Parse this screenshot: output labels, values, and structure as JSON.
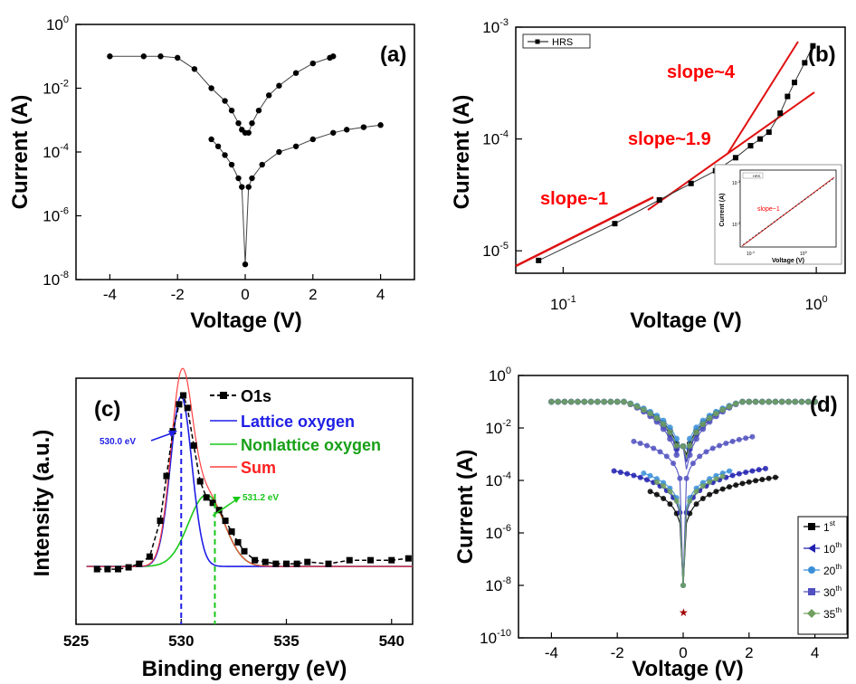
{
  "chart_data": [
    {
      "panel": "(a)",
      "type": "scatter",
      "xlabel": "Voltage (V)",
      "ylabel": "Current (A)",
      "xlim": [
        -5,
        5
      ],
      "ylim_log10": [
        -8,
        0
      ],
      "x_ticks": [
        "-4",
        "-2",
        "0",
        "2",
        "4"
      ],
      "y_ticks": [
        {
          "base": "10",
          "exp": "0"
        },
        {
          "base": "10",
          "exp": "-2"
        },
        {
          "base": "10",
          "exp": "-4"
        },
        {
          "base": "10",
          "exp": "-6"
        },
        {
          "base": "10",
          "exp": "-8"
        }
      ],
      "scale_y": "log",
      "grid": false,
      "series": [
        {
          "segment": "set-branch",
          "points": [
            [
              -4,
              0.1
            ],
            [
              -3,
              0.1
            ],
            [
              -2.5,
              0.1
            ],
            [
              -2,
              0.09
            ],
            [
              -1.5,
              0.04
            ],
            [
              -1,
              0.01
            ],
            [
              -0.6,
              0.004
            ],
            [
              -0.4,
              0.002
            ],
            [
              -0.2,
              0.0008
            ],
            [
              -0.1,
              0.0005
            ],
            [
              0,
              0.0004
            ],
            [
              0.1,
              0.0004
            ],
            [
              0.2,
              0.0008
            ],
            [
              0.4,
              0.002
            ],
            [
              0.7,
              0.006
            ],
            [
              1,
              0.012
            ],
            [
              1.5,
              0.03
            ],
            [
              2,
              0.06
            ],
            [
              2.5,
              0.09
            ],
            [
              2.6,
              0.1
            ]
          ]
        },
        {
          "segment": "reset-branch",
          "points": [
            [
              -1,
              0.00025
            ],
            [
              -0.8,
              0.00015
            ],
            [
              -0.6,
              8e-05
            ],
            [
              -0.4,
              4e-05
            ],
            [
              -0.2,
              1.5e-05
            ],
            [
              -0.1,
              8e-06
            ],
            [
              0,
              3e-08
            ],
            [
              0.1,
              8e-06
            ],
            [
              0.2,
              1.5e-05
            ],
            [
              0.5,
              4e-05
            ],
            [
              1,
              0.0001
            ],
            [
              1.5,
              0.00015
            ],
            [
              2,
              0.00025
            ],
            [
              2.6,
              0.0004
            ],
            [
              3,
              0.0005
            ],
            [
              3.5,
              0.0006
            ],
            [
              4,
              0.0007
            ]
          ]
        }
      ]
    },
    {
      "panel": "(b)",
      "type": "scatter",
      "xlabel": "Voltage (V)",
      "ylabel": "Current (A)",
      "scale_x": "log",
      "scale_y": "log",
      "x_ticks": [
        {
          "base": "10",
          "exp": "-1"
        },
        {
          "base": "10",
          "exp": "0"
        }
      ],
      "y_ticks": [
        {
          "base": "10",
          "exp": "-3"
        },
        {
          "base": "10",
          "exp": "-4"
        },
        {
          "base": "10",
          "exp": "-5"
        }
      ],
      "legend": [
        "HRS"
      ],
      "legend_position": "top-left",
      "series": [
        {
          "name": "HRS",
          "points": [
            [
              0.08,
              8.2e-06
            ],
            [
              0.16,
              1.75e-05
            ],
            [
              0.24,
              2.85e-05
            ],
            [
              0.32,
              4e-05
            ],
            [
              0.4,
              5.2e-05
            ],
            [
              0.48,
              6.8e-05
            ],
            [
              0.55,
              8.7e-05
            ],
            [
              0.6,
              0.0001
            ],
            [
              0.65,
              0.000115
            ],
            [
              0.72,
              0.00017
            ],
            [
              0.77,
              0.00024
            ],
            [
              0.82,
              0.00032
            ],
            [
              0.9,
              0.00048
            ],
            [
              0.97,
              0.00068
            ]
          ]
        }
      ],
      "annotations": [
        "slope~4",
        "slope~1.9",
        "slope~1"
      ],
      "inset": {
        "ylabel": "Current (A)",
        "xlabel": "Voltage (V)",
        "legend": "HRS",
        "annotation": "slope~1",
        "x_ticks": [
          {
            "base": "10",
            "exp": "-1"
          },
          {
            "base": "10",
            "exp": "0"
          }
        ],
        "y_ticks": [
          {
            "base": "10",
            "exp": "-1"
          },
          {
            "base": "10",
            "exp": "-3"
          }
        ]
      }
    },
    {
      "panel": "(c)",
      "type": "line",
      "xlabel": "Binding energy (eV)",
      "ylabel": "Intensity (a.u.)",
      "xlim": [
        525,
        541
      ],
      "x_ticks": [
        "525",
        "530",
        "535",
        "540"
      ],
      "series": [
        {
          "name": "O1s",
          "style": "black squares dashed",
          "x": [
            526,
            526.5,
            527,
            527.5,
            528,
            528.5,
            529,
            529.3,
            529.6,
            529.9,
            530.1,
            530.3,
            530.6,
            530.9,
            531.2,
            531.5,
            531.8,
            532.1,
            532.4,
            532.7,
            533,
            533.5,
            534,
            534.5,
            535,
            535.5,
            536,
            537,
            538,
            539,
            540,
            540.8
          ],
          "y": [
            0.03,
            0.03,
            0.03,
            0.04,
            0.06,
            0.1,
            0.3,
            0.55,
            0.8,
            0.95,
            1.0,
            0.93,
            0.72,
            0.52,
            0.43,
            0.4,
            0.36,
            0.3,
            0.24,
            0.18,
            0.13,
            0.08,
            0.07,
            0.06,
            0.06,
            0.06,
            0.07,
            0.06,
            0.08,
            0.08,
            0.08,
            0.09
          ]
        },
        {
          "name": "Lattice oxygen",
          "color": "#1e1ee6",
          "center": 530.0,
          "height": 0.95,
          "fwhm": 1.2
        },
        {
          "name": "Nonlattice oxygen",
          "color": "#18c818",
          "center": 531.2,
          "height": 0.4,
          "fwhm": 2.0
        },
        {
          "name": "Sum",
          "color": "#ff4040"
        }
      ],
      "annotations": [
        "530.0 eV",
        "531.2 eV"
      ],
      "legend_position": "top-right"
    },
    {
      "panel": "(d)",
      "type": "scatter",
      "xlabel": "Voltage (V)",
      "ylabel": "Current (A)",
      "scale_y": "log",
      "xlim": [
        -5,
        5
      ],
      "ylim_log10": [
        -10,
        0
      ],
      "x_ticks": [
        "-4",
        "-2",
        "0",
        "2",
        "4"
      ],
      "y_ticks": [
        {
          "base": "10",
          "exp": "0"
        },
        {
          "base": "10",
          "exp": "-2"
        },
        {
          "base": "10",
          "exp": "-4"
        },
        {
          "base": "10",
          "exp": "-6"
        },
        {
          "base": "10",
          "exp": "-8"
        },
        {
          "base": "10",
          "exp": "-10"
        }
      ],
      "legend_position": "bottom-right",
      "series": [
        {
          "name": "1",
          "sup": "st",
          "color": "#000000",
          "marker": "square"
        },
        {
          "name": "10",
          "sup": "th",
          "color": "#2020b0",
          "marker": "triangle-left"
        },
        {
          "name": "20",
          "sup": "th",
          "color": "#3a8fd8",
          "marker": "circle"
        },
        {
          "name": "30",
          "sup": "th",
          "color": "#5050c0",
          "marker": "square"
        },
        {
          "name": "35",
          "sup": "th",
          "color": "#70a060",
          "marker": "diamond"
        }
      ]
    }
  ]
}
